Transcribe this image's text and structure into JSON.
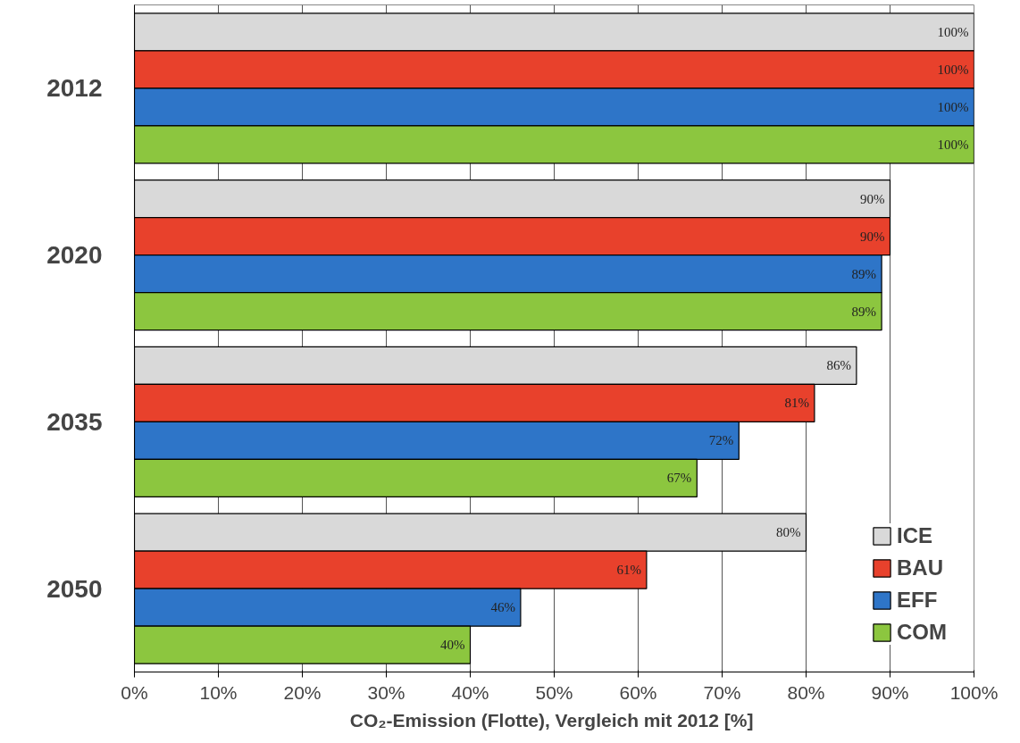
{
  "chart_data": {
    "type": "bar",
    "orientation": "horizontal",
    "xlabel": "CO₂-Emission (Flotte), Vergleich mit  2012 [%]",
    "categories": [
      "2012",
      "2020",
      "2035",
      "2050"
    ],
    "series": [
      {
        "name": "ICE",
        "color": "#d9d9d9",
        "values": [
          100,
          90,
          86,
          80
        ],
        "value_labels": [
          "100%",
          "90%",
          "86%",
          "80%"
        ]
      },
      {
        "name": "BAU",
        "color": "#e8412c",
        "values": [
          100,
          90,
          81,
          61
        ],
        "value_labels": [
          "100%",
          "90%",
          "81%",
          "61%"
        ]
      },
      {
        "name": "EFF",
        "color": "#2e75c8",
        "values": [
          100,
          89,
          72,
          46
        ],
        "value_labels": [
          "100%",
          "89%",
          "72%",
          "46%"
        ]
      },
      {
        "name": "COM",
        "color": "#8cc63f",
        "values": [
          100,
          89,
          67,
          40
        ],
        "value_labels": [
          "100%",
          "89%",
          "67%",
          "40%"
        ]
      }
    ],
    "xlim": [
      0,
      100
    ],
    "xticks": [
      {
        "value": 0,
        "label": "0%"
      },
      {
        "value": 10,
        "label": "10%"
      },
      {
        "value": 20,
        "label": "20%"
      },
      {
        "value": 30,
        "label": "30%"
      },
      {
        "value": 40,
        "label": "40%"
      },
      {
        "value": 50,
        "label": "50%"
      },
      {
        "value": 60,
        "label": "60%"
      },
      {
        "value": 70,
        "label": "70%"
      },
      {
        "value": 80,
        "label": "80%"
      },
      {
        "value": 90,
        "label": "90%"
      },
      {
        "value": 100,
        "label": "100%"
      }
    ],
    "grid": "x",
    "legend": "bottom right"
  }
}
